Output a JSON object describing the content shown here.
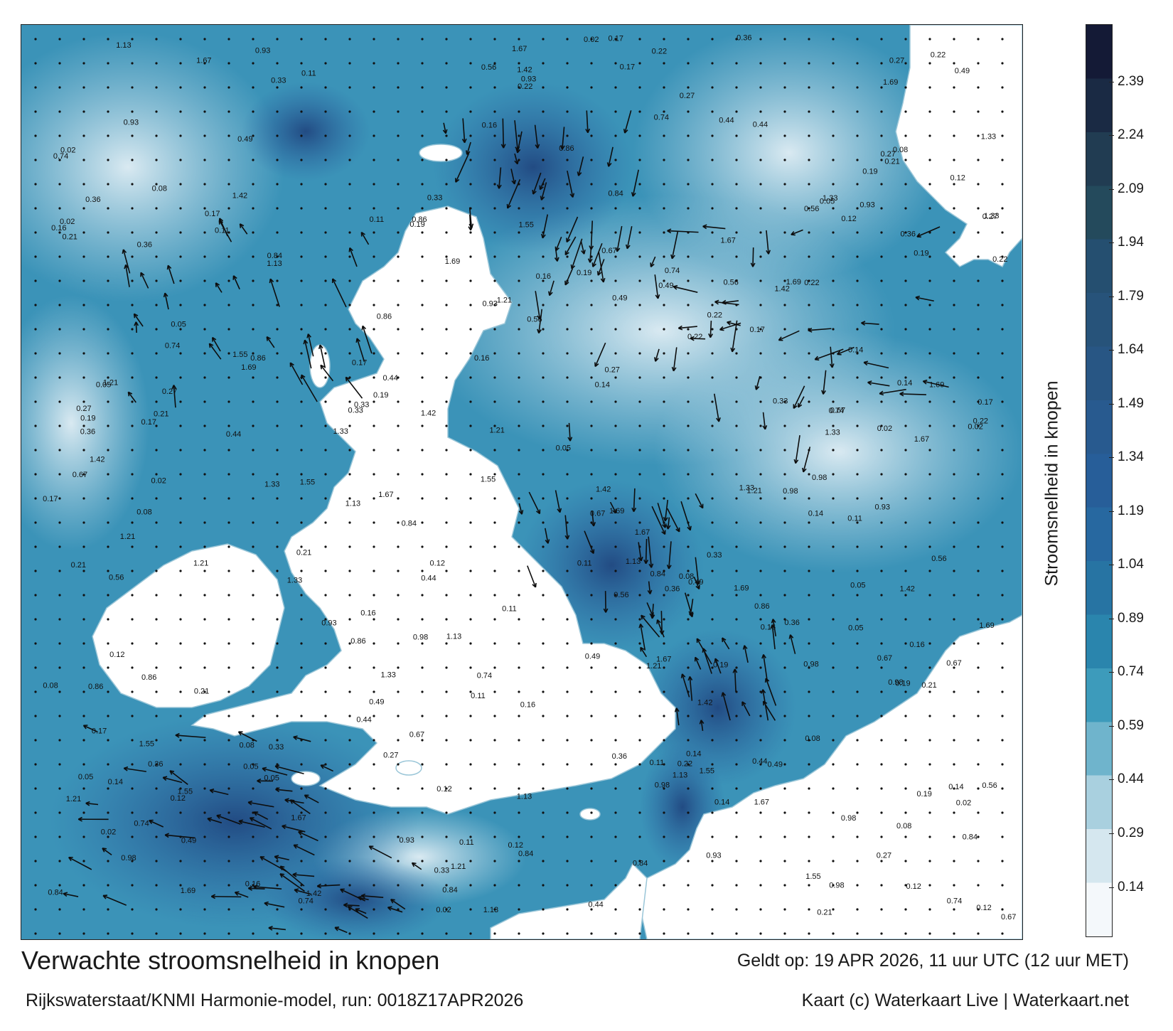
{
  "title": "Verwachte stroomsnelheid in knopen",
  "subtitle": "Rijkswaterstaat/KNMI Harmonie-model, run: 0018Z17APR2026",
  "valid_time": "Geldt op: 19 APR 2026, 11 uur UTC (12 uur MET)",
  "credit": "Kaart (c) Waterkaart Live | Waterkaart.net",
  "legend": {
    "label": "Stroomsnelheid in knopen",
    "ticks": [
      "2.39",
      "2.24",
      "2.09",
      "1.94",
      "1.79",
      "1.64",
      "1.49",
      "1.34",
      "1.19",
      "1.04",
      "0.89",
      "0.74",
      "0.59",
      "0.44",
      "0.29",
      "0.14"
    ],
    "tick_values": [
      2.39,
      2.24,
      2.09,
      1.94,
      1.79,
      1.64,
      1.49,
      1.34,
      1.19,
      1.04,
      0.89,
      0.74,
      0.59,
      0.44,
      0.29,
      0.14
    ],
    "range": [
      0,
      2.55
    ],
    "colors": [
      "#f4f8fb",
      "#d5e7ef",
      "#a9d0df",
      "#6fb4cc",
      "#3d9bbb",
      "#2a85ad",
      "#2774a3",
      "#2768a0",
      "#275e99",
      "#285a8f",
      "#285684",
      "#27537a",
      "#254f70",
      "#244a5c",
      "#213c52",
      "#1a2a44",
      "#141a36"
    ]
  },
  "map": {
    "colors": {
      "land": "#ffffff",
      "sea_low": "#c9e2ec",
      "sea_mid": "#3b93b8",
      "sea_high": "#2a5fa0",
      "sea_peak": "#1e3f7a"
    },
    "value_labels": [
      {
        "text": "0.27",
        "v": 0.27
      },
      {
        "text": "0.16",
        "v": 0.16
      },
      {
        "text": "0.36",
        "v": 0.36
      },
      {
        "text": "0.49",
        "v": 0.49
      },
      {
        "text": "0.12",
        "v": 0.12
      },
      {
        "text": "0.05",
        "v": 0.05
      },
      {
        "text": "0.02",
        "v": 0.02
      },
      {
        "text": "0.11",
        "v": 0.11
      },
      {
        "text": "0.74",
        "v": 0.74
      },
      {
        "text": "0.93",
        "v": 0.93
      },
      {
        "text": "1.21",
        "v": 1.21
      },
      {
        "text": "0.22",
        "v": 0.22
      },
      {
        "text": "0.19",
        "v": 0.19
      },
      {
        "text": "0.17",
        "v": 0.17
      },
      {
        "text": "1.42",
        "v": 1.42
      },
      {
        "text": "1.33",
        "v": 1.33
      },
      {
        "text": "1.67",
        "v": 1.67
      },
      {
        "text": "0.84",
        "v": 0.84
      },
      {
        "text": "0.98",
        "v": 0.98
      },
      {
        "text": "1.69",
        "v": 1.69
      },
      {
        "text": "1.55",
        "v": 1.55
      },
      {
        "text": "0.86",
        "v": 0.86
      },
      {
        "text": "0.67",
        "v": 0.67
      },
      {
        "text": "0.44",
        "v": 0.44
      },
      {
        "text": "0.14",
        "v": 0.14
      },
      {
        "text": "0.08",
        "v": 0.08
      },
      {
        "text": "0.33",
        "v": 0.33
      },
      {
        "text": "0.21",
        "v": 0.21
      },
      {
        "text": "1.13",
        "v": 1.13
      },
      {
        "text": "0.56",
        "v": 0.56
      }
    ]
  }
}
